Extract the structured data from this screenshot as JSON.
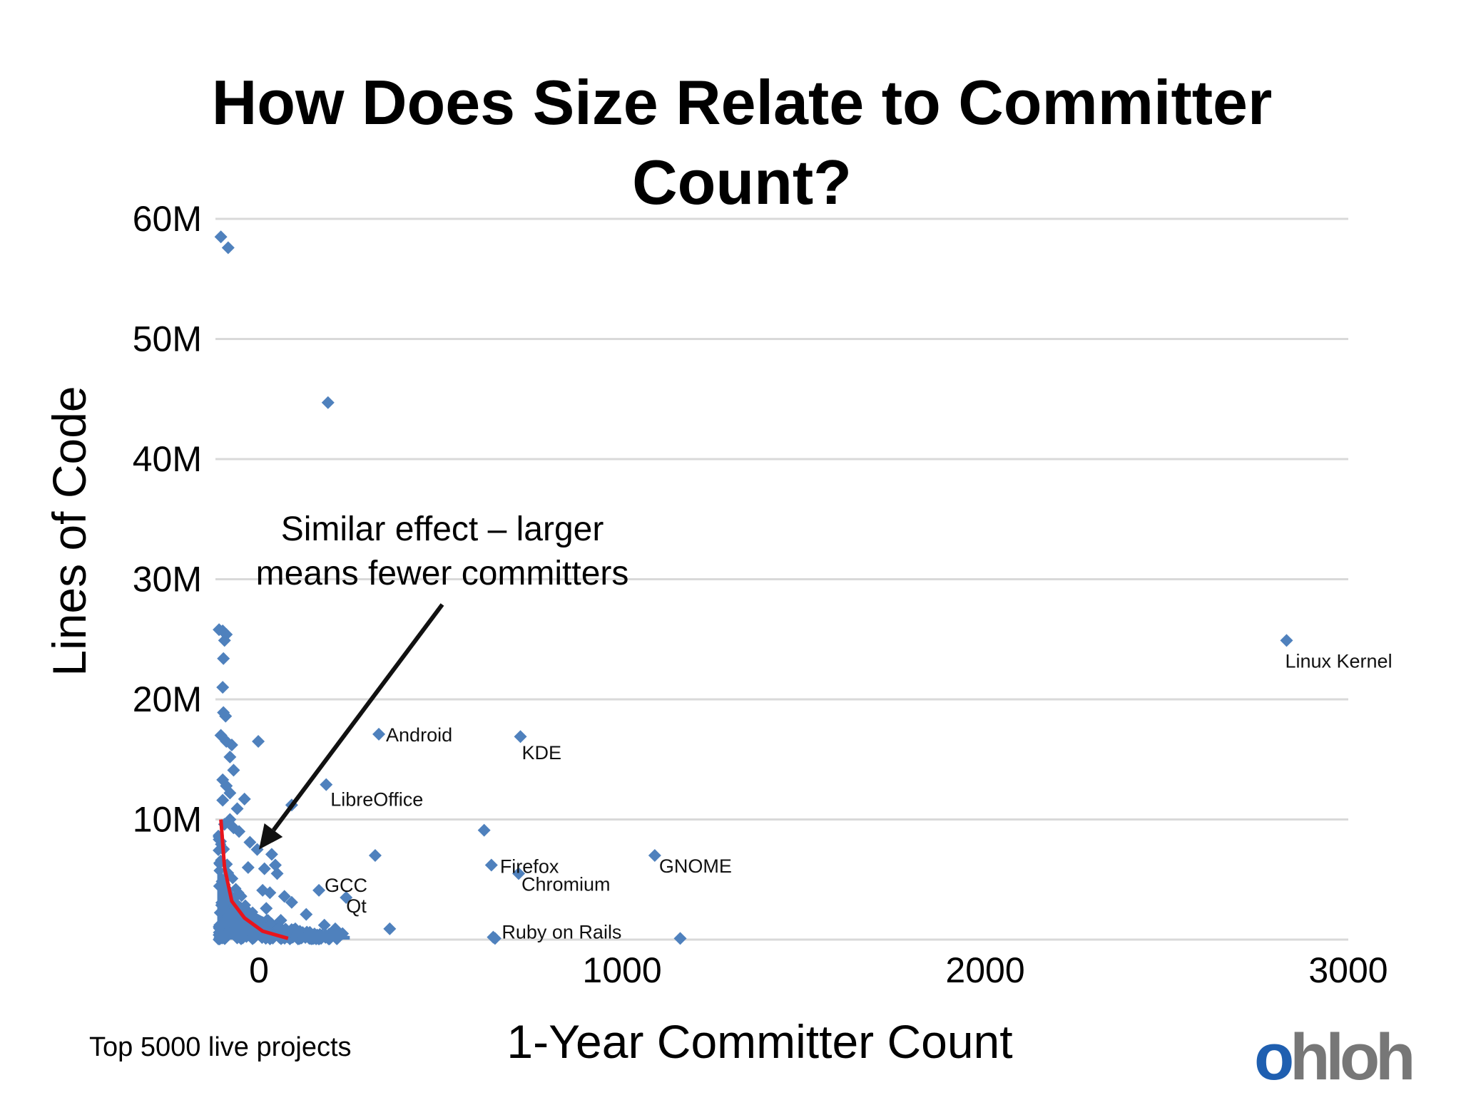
{
  "colors": {
    "point": "#4f81bd",
    "grid": "#d9d9d9",
    "trend": "#e8141c",
    "arrow": "#111111"
  },
  "chart_data": {
    "type": "scatter",
    "title": "How Does Size Relate to Committer Count?",
    "xlabel": "1-Year Committer Count",
    "ylabel": "Lines of Code",
    "xlim": [
      -120,
      3000
    ],
    "ylim": [
      0,
      60
    ],
    "y_unit": "M",
    "x_ticks": [
      0,
      1000,
      2000,
      3000
    ],
    "x_tick_labels": [
      "0",
      "1000",
      "2000",
      "3000"
    ],
    "y_ticks": [
      10,
      20,
      30,
      40,
      50,
      60
    ],
    "y_tick_labels": [
      "10M",
      "20M",
      "30M",
      "40M",
      "50M",
      "60M"
    ],
    "grid": true,
    "labeled_points": [
      {
        "label": "Linux Kernel",
        "x": 2830,
        "y": 24.9
      },
      {
        "label": "Android",
        "x": 330,
        "y": 17.1
      },
      {
        "label": "KDE",
        "x": 720,
        "y": 16.9
      },
      {
        "label": "LibreOffice",
        "x": 185,
        "y": 12.9
      },
      {
        "label": "Firefox",
        "x": 640,
        "y": 6.2
      },
      {
        "label": "Chromium",
        "x": 715,
        "y": 5.5
      },
      {
        "label": "GNOME",
        "x": 1090,
        "y": 7.0
      },
      {
        "label": "GCC",
        "x": 165,
        "y": 4.1
      },
      {
        "label": "Qt",
        "x": 240,
        "y": 3.5
      },
      {
        "label": "Ruby on Rails",
        "x": 645,
        "y": 0.2
      }
    ],
    "points": [
      [
        -105,
        58.5
      ],
      [
        -85,
        57.6
      ],
      [
        190,
        44.7
      ],
      [
        -110,
        25.8
      ],
      [
        -100,
        25.7
      ],
      [
        -90,
        25.4
      ],
      [
        -95,
        24.9
      ],
      [
        -98,
        23.4
      ],
      [
        -100,
        21.0
      ],
      [
        -98,
        18.9
      ],
      [
        -92,
        18.6
      ],
      [
        -105,
        17.0
      ],
      [
        -90,
        16.5
      ],
      [
        -75,
        16.2
      ],
      [
        -2,
        16.5
      ],
      [
        -80,
        15.2
      ],
      [
        -70,
        14.1
      ],
      [
        -100,
        13.3
      ],
      [
        -90,
        12.8
      ],
      [
        -80,
        12.2
      ],
      [
        -100,
        11.6
      ],
      [
        -60,
        10.9
      ],
      [
        -40,
        11.7
      ],
      [
        -80,
        10.0
      ],
      [
        -95,
        9.6
      ],
      [
        -70,
        9.3
      ],
      [
        -55,
        9.0
      ],
      [
        -25,
        8.1
      ],
      [
        -5,
        7.5
      ],
      [
        35,
        7.1
      ],
      [
        15,
        5.9
      ],
      [
        45,
        6.2
      ],
      [
        50,
        5.5
      ],
      [
        10,
        4.1
      ],
      [
        30,
        3.9
      ],
      [
        70,
        3.6
      ],
      [
        90,
        3.1
      ],
      [
        130,
        2.1
      ],
      [
        180,
        1.2
      ],
      [
        210,
        0.9
      ],
      [
        100,
        0.9
      ],
      [
        140,
        0.6
      ],
      [
        230,
        0.5
      ],
      [
        360,
        0.9
      ],
      [
        320,
        7.0
      ],
      [
        620,
        9.1
      ],
      [
        650,
        0.1
      ],
      [
        1160,
        0.1
      ],
      [
        90,
        11.2
      ],
      [
        -30,
        6.0
      ],
      [
        20,
        2.6
      ],
      [
        60,
        1.6
      ],
      [
        160,
        0.3
      ],
      [
        -10,
        0.4
      ]
    ],
    "trend_line": [
      [
        -105,
        10.0
      ],
      [
        -95,
        6.0
      ],
      [
        -75,
        3.2
      ],
      [
        -40,
        1.8
      ],
      [
        10,
        0.7
      ],
      [
        80,
        0.1
      ]
    ],
    "annotation": {
      "lines": [
        "Similar effect – larger",
        "means fewer committers"
      ],
      "arrow_to": [
        0,
        7.5
      ]
    }
  },
  "footnote": "Top 5000 live projects",
  "logo": {
    "mark": "o",
    "text": "hloh"
  }
}
